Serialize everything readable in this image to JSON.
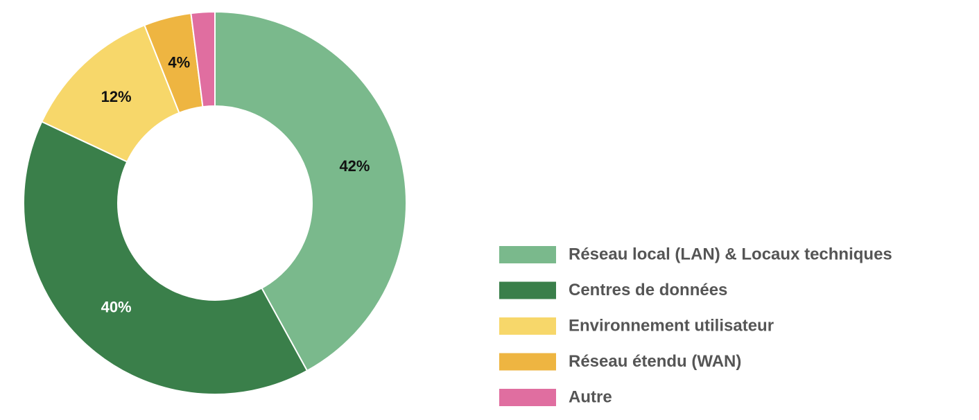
{
  "chart_data": {
    "type": "donut",
    "categories": [
      "Réseau local (LAN) & Locaux techniques",
      "Centres de données",
      "Environnement utilisateur",
      "Réseau étendu (WAN)",
      "Autre"
    ],
    "values": [
      42,
      40,
      12,
      4,
      2
    ],
    "value_labels": [
      "42%",
      "40%",
      "12%",
      "4%",
      null
    ],
    "colors": [
      "#7ab98c",
      "#3a7f4a",
      "#f7d76a",
      "#eeb541",
      "#e06ea0"
    ]
  }
}
